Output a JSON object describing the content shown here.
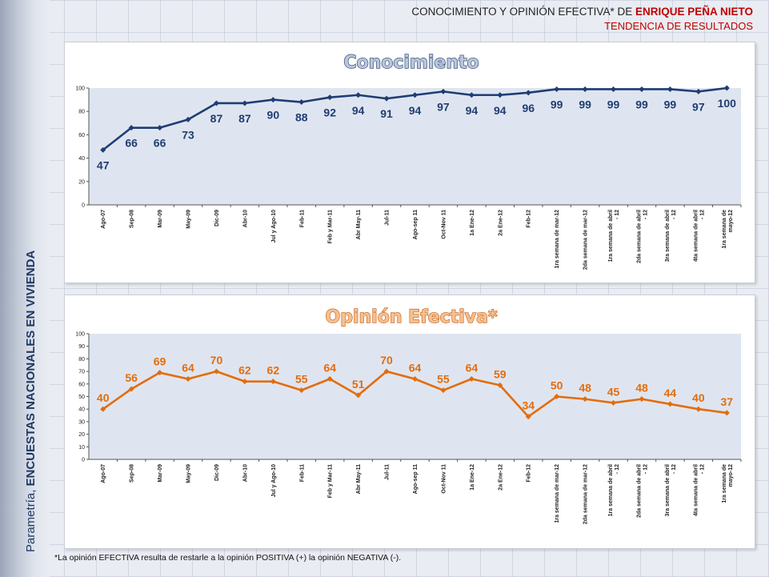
{
  "header": {
    "title_prefix": "CONOCIMIENTO Y OPINIÓN EFECTIVA* DE",
    "title_name": "ENRIQUE PEÑA NIETO",
    "subtitle": "TENDENCIA DE RESULTADOS"
  },
  "side_label": {
    "prefix": "Parametría, ",
    "bold": "ENCUESTAS NACIONALES EN VIVIENDA"
  },
  "footnote": "*La opinión EFECTIVA resulta de restarle a la opinión POSITIVA (+) la opinión NEGATIVA (-).",
  "colors": {
    "conocimiento": "#1f3d73",
    "opinion": "#e46c0a",
    "plot_bg": "#dfe5f0"
  },
  "chart_data": [
    {
      "type": "line",
      "title": "Conocimiento",
      "categories": [
        "Ago-07",
        "Sep-08",
        "Mar-09",
        "May-09",
        "Dic-09",
        "Abr-10",
        "Jul y Ago-10",
        "Feb-11",
        "Feb y Mar-11",
        "Abr May-11",
        "Jul-11",
        "Ago-sep 11",
        "Oct-Nov 11",
        "1a Ene-12",
        "2a Ene-12",
        "Feb-12",
        "1ra semana de mar-12",
        "2da semana de mar-12",
        "1ra semana de abril - 12",
        "2da semana de abril - 12",
        "3ra semana de abril - 12",
        "4ta semana de abril - 12",
        "1ra semana de mayo-12"
      ],
      "values": [
        47,
        66,
        66,
        73,
        87,
        87,
        90,
        88,
        92,
        94,
        91,
        94,
        97,
        94,
        94,
        96,
        99,
        99,
        99,
        99,
        99,
        97,
        100
      ],
      "ylim": [
        0,
        100
      ],
      "yticks": [
        0,
        20,
        40,
        60,
        80,
        100
      ],
      "grid": false
    },
    {
      "type": "line",
      "title": "Opinión Efectiva*",
      "categories": [
        "Ago-07",
        "Sep-08",
        "Mar-09",
        "May-09",
        "Dic-09",
        "Abr-10",
        "Jul y Ago-10",
        "Feb-11",
        "Feb y Mar-11",
        "Abr May-11",
        "Jul-11",
        "Ago-sep 11",
        "Oct-Nov 11",
        "1a Ene-12",
        "2a Ene-12",
        "Feb-12",
        "1ra semana de mar-12",
        "2da semana de mar-12",
        "1ra semana de abril - 12",
        "2da semana de abril - 12",
        "3ra semana de abril - 12",
        "4ta semana de abril - 12",
        "1ra semana de mayo-12"
      ],
      "values": [
        40,
        56,
        69,
        64,
        70,
        62,
        62,
        55,
        64,
        51,
        70,
        64,
        55,
        64,
        59,
        34,
        50,
        48,
        45,
        48,
        44,
        40,
        37
      ],
      "ylim": [
        0,
        100
      ],
      "yticks": [
        0,
        10,
        20,
        30,
        40,
        50,
        60,
        70,
        80,
        90,
        100
      ],
      "grid": false
    }
  ]
}
